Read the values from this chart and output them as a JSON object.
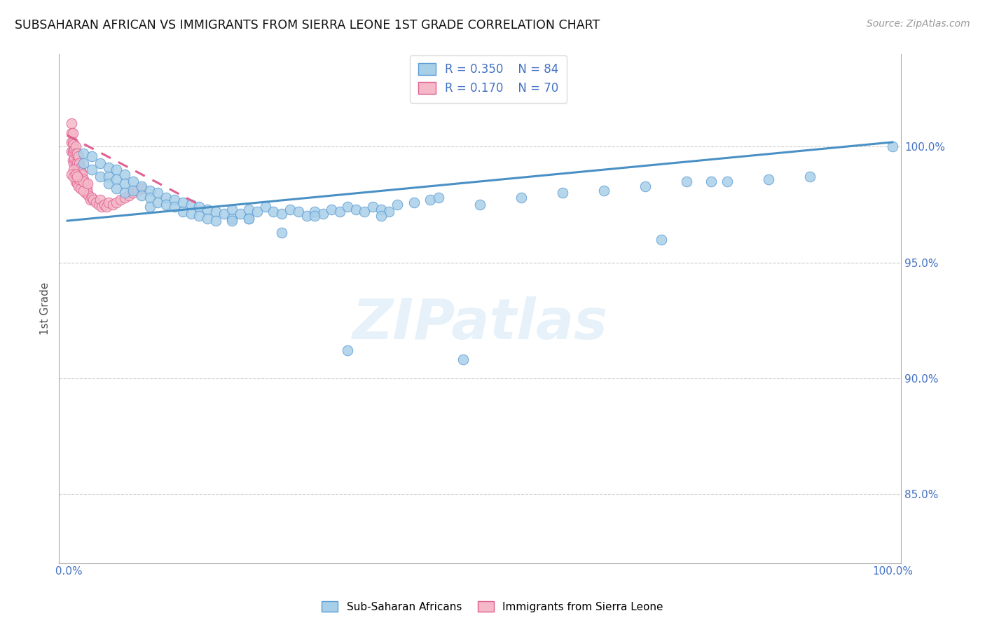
{
  "title": "SUBSAHARAN AFRICAN VS IMMIGRANTS FROM SIERRA LEONE 1ST GRADE CORRELATION CHART",
  "source": "Source: ZipAtlas.com",
  "ylabel": "1st Grade",
  "ytick_labels": [
    "100.0%",
    "95.0%",
    "90.0%",
    "85.0%"
  ],
  "ytick_values": [
    1.0,
    0.95,
    0.9,
    0.85
  ],
  "ymin": 0.82,
  "ymax": 1.04,
  "xmin": -0.01,
  "xmax": 1.01,
  "legend_blue_r": "0.350",
  "legend_blue_n": "84",
  "legend_pink_r": "0.170",
  "legend_pink_n": "70",
  "blue_color": "#a8cfe8",
  "pink_color": "#f4b8c8",
  "blue_edge_color": "#5b9bd5",
  "pink_edge_color": "#e06090",
  "blue_line_color": "#4a90c4",
  "pink_line_color": "#e07090",
  "axis_color": "#4472C4",
  "grid_color": "#cccccc",
  "watermark": "ZIPatlas",
  "blue_trend_x0": 0.0,
  "blue_trend_y0": 0.968,
  "blue_trend_x1": 1.0,
  "blue_trend_y1": 1.002,
  "pink_trend_x0": 0.0,
  "pink_trend_y0": 1.005,
  "pink_trend_x1": 0.16,
  "pink_trend_y1": 0.975,
  "blue_scatter_x": [
    0.02,
    0.02,
    0.03,
    0.03,
    0.04,
    0.04,
    0.05,
    0.05,
    0.05,
    0.06,
    0.06,
    0.06,
    0.07,
    0.07,
    0.07,
    0.08,
    0.08,
    0.09,
    0.09,
    0.1,
    0.1,
    0.1,
    0.11,
    0.11,
    0.12,
    0.12,
    0.13,
    0.13,
    0.14,
    0.14,
    0.15,
    0.15,
    0.16,
    0.16,
    0.17,
    0.17,
    0.18,
    0.18,
    0.19,
    0.2,
    0.2,
    0.21,
    0.22,
    0.22,
    0.23,
    0.24,
    0.25,
    0.26,
    0.27,
    0.28,
    0.29,
    0.3,
    0.31,
    0.32,
    0.33,
    0.34,
    0.35,
    0.36,
    0.37,
    0.38,
    0.39,
    0.4,
    0.42,
    0.44,
    0.45,
    0.5,
    0.55,
    0.6,
    0.65,
    0.7,
    0.72,
    0.75,
    0.78,
    0.8,
    0.85,
    0.9,
    1.0,
    0.26,
    0.34,
    0.48,
    0.22,
    0.3,
    0.38,
    0.2
  ],
  "blue_scatter_y": [
    0.997,
    0.993,
    0.996,
    0.99,
    0.993,
    0.987,
    0.991,
    0.987,
    0.984,
    0.99,
    0.986,
    0.982,
    0.988,
    0.984,
    0.98,
    0.985,
    0.981,
    0.983,
    0.979,
    0.981,
    0.978,
    0.974,
    0.98,
    0.976,
    0.978,
    0.975,
    0.977,
    0.974,
    0.976,
    0.972,
    0.975,
    0.971,
    0.974,
    0.97,
    0.973,
    0.969,
    0.972,
    0.968,
    0.971,
    0.973,
    0.969,
    0.971,
    0.973,
    0.969,
    0.972,
    0.974,
    0.972,
    0.971,
    0.973,
    0.972,
    0.97,
    0.972,
    0.971,
    0.973,
    0.972,
    0.974,
    0.973,
    0.972,
    0.974,
    0.973,
    0.972,
    0.975,
    0.976,
    0.977,
    0.978,
    0.975,
    0.978,
    0.98,
    0.981,
    0.983,
    0.96,
    0.985,
    0.985,
    0.985,
    0.986,
    0.987,
    1.0,
    0.963,
    0.912,
    0.908,
    0.969,
    0.97,
    0.97,
    0.968
  ],
  "pink_scatter_x": [
    0.005,
    0.005,
    0.005,
    0.005,
    0.007,
    0.007,
    0.007,
    0.007,
    0.008,
    0.008,
    0.008,
    0.009,
    0.009,
    0.01,
    0.01,
    0.01,
    0.01,
    0.012,
    0.012,
    0.012,
    0.014,
    0.014,
    0.015,
    0.015,
    0.016,
    0.016,
    0.017,
    0.017,
    0.018,
    0.018,
    0.02,
    0.02,
    0.022,
    0.022,
    0.024,
    0.025,
    0.026,
    0.028,
    0.03,
    0.032,
    0.035,
    0.038,
    0.04,
    0.042,
    0.045,
    0.048,
    0.05,
    0.055,
    0.06,
    0.065,
    0.07,
    0.075,
    0.08,
    0.085,
    0.09,
    0.01,
    0.012,
    0.014,
    0.016,
    0.02,
    0.008,
    0.01,
    0.012,
    0.015,
    0.02,
    0.025,
    0.005,
    0.008,
    0.01,
    0.012
  ],
  "pink_scatter_y": [
    1.01,
    1.006,
    1.002,
    0.998,
    1.006,
    1.002,
    0.998,
    0.994,
    1.001,
    0.997,
    0.993,
    0.999,
    0.995,
    1.0,
    0.997,
    0.993,
    0.989,
    0.997,
    0.993,
    0.989,
    0.996,
    0.992,
    0.993,
    0.989,
    0.991,
    0.987,
    0.989,
    0.985,
    0.988,
    0.984,
    0.986,
    0.982,
    0.984,
    0.98,
    0.982,
    0.98,
    0.979,
    0.977,
    0.978,
    0.977,
    0.976,
    0.975,
    0.977,
    0.974,
    0.975,
    0.974,
    0.976,
    0.975,
    0.976,
    0.977,
    0.978,
    0.979,
    0.98,
    0.981,
    0.982,
    0.985,
    0.984,
    0.983,
    0.982,
    0.981,
    0.99,
    0.988,
    0.987,
    0.986,
    0.985,
    0.984,
    0.988,
    0.987,
    0.988,
    0.987
  ]
}
